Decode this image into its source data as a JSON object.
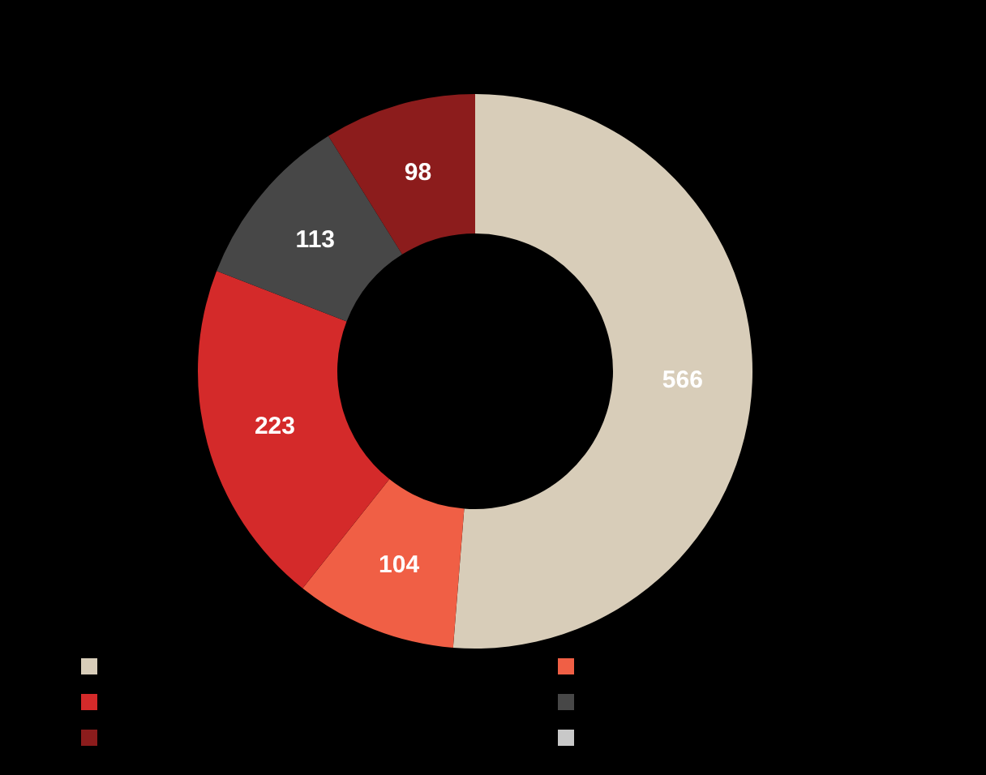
{
  "chart_data": {
    "type": "donut",
    "categories": [
      null,
      null,
      null,
      null,
      null,
      null
    ],
    "values": [
      566,
      104,
      223,
      113,
      98,
      0
    ],
    "colors": [
      "#d8cdb9",
      "#f05f45",
      "#d42a2a",
      "#474747",
      "#8c1c1c",
      "#c8c8c8"
    ],
    "value_labels": [
      "566",
      "104",
      "223",
      "113",
      "98",
      null
    ]
  }
}
